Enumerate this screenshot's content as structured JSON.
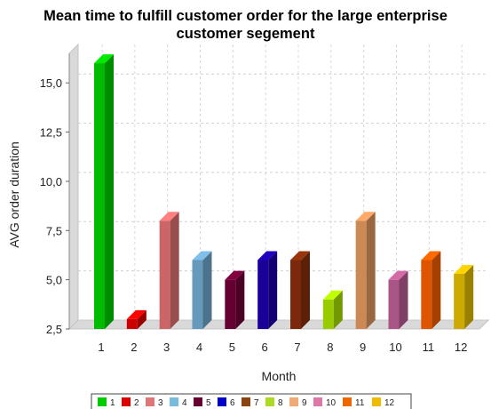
{
  "chart_data": {
    "type": "bar",
    "title_line1": "Mean time to fulfill customer order for the large enterprise",
    "title_line2": "customer segement",
    "xlabel": "Month",
    "ylabel": "AVG order duration",
    "categories": [
      "1",
      "2",
      "3",
      "4",
      "5",
      "6",
      "7",
      "8",
      "9",
      "10",
      "11",
      "12"
    ],
    "values": [
      16,
      3,
      8,
      6,
      5,
      6,
      6,
      4,
      8,
      5,
      6,
      5.3
    ],
    "ylim": [
      2.5,
      16.5
    ],
    "yticks": [
      "2,5",
      "5,0",
      "7,5",
      "10,0",
      "12,5",
      "15,0"
    ],
    "ytick_values": [
      2.5,
      5.0,
      7.5,
      10.0,
      12.5,
      15.0
    ],
    "grid": true,
    "legend_position": "bottom",
    "legend": [
      "1",
      "2",
      "3",
      "4",
      "5",
      "6",
      "7",
      "8",
      "9",
      "10",
      "11",
      "12"
    ],
    "colors": [
      "#00bb00",
      "#cc0000",
      "#cc6666",
      "#6699bb",
      "#660033",
      "#1a0099",
      "#7a2a0a",
      "#99cc00",
      "#cc8855",
      "#aa5588",
      "#dd5500",
      "#ccaa00"
    ],
    "legend_colors": [
      "#00cc00",
      "#dd0000",
      "#dd7777",
      "#77bbdd",
      "#660033",
      "#0000cc",
      "#884411",
      "#aadd22",
      "#eeaa77",
      "#dd77aa",
      "#ee6600",
      "#eebb00"
    ]
  }
}
